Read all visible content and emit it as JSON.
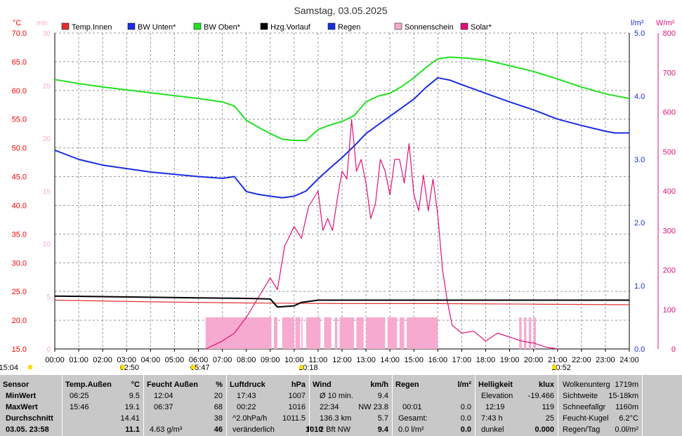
{
  "title": "Samstag, 03.05.2025",
  "colors": {
    "temp_innen": "#e03030",
    "bw_unten": "#1a2ee0",
    "bw_oben": "#22e022",
    "hzg_vorlauf": "#000000",
    "regen": "#1a2ee0",
    "sonnenschein": "#f7aad0",
    "solar": "#e0107a",
    "axis_c": "#ff0000",
    "axis_min": "#f7aad0",
    "axis_rain": "#1a2ee0",
    "axis_solar": "#e0107a"
  },
  "legend": [
    {
      "label": "Temp.Innen",
      "color": "#e03030"
    },
    {
      "label": "BW Unten*",
      "color": "#1a2ee0"
    },
    {
      "label": "BW Oben*",
      "color": "#22e022"
    },
    {
      "label": "Hzg.Vorlauf",
      "color": "#000000"
    },
    {
      "label": "Regen",
      "color": "#1a2ee0"
    },
    {
      "label": "Sonnenschein",
      "color": "#f7aad0"
    },
    {
      "label": "Solar*",
      "color": "#e0107a"
    }
  ],
  "axes": {
    "left_unit": "°C",
    "min_unit": "min",
    "rain_unit": "l/m²",
    "solar_unit": "W/m²",
    "left_ticks": [
      "70.0",
      "65.0",
      "60.0",
      "55.0",
      "50.0",
      "45.0",
      "40.0",
      "35.0",
      "30.0",
      "25.0",
      "20.0",
      "15.0"
    ],
    "min_ticks": [
      "30",
      "25",
      "20",
      "15",
      "10",
      "5",
      "0"
    ],
    "rain_ticks": [
      "5.0",
      "4.0",
      "3.0",
      "2.0",
      "1.0",
      "0.0"
    ],
    "solar_ticks": [
      "800",
      "700",
      "600",
      "500",
      "400",
      "300",
      "200",
      "100",
      "0"
    ],
    "x_ticks": [
      "00:00",
      "01:00",
      "02:00",
      "03:00",
      "04:00",
      "05:00",
      "06:00",
      "07:00",
      "08:00",
      "09:00",
      "10:00",
      "11:00",
      "12:00",
      "13:00",
      "14:00",
      "15:00",
      "16:00",
      "17:00",
      "18:00",
      "19:00",
      "20:00",
      "21:00",
      "22:00",
      "23:00",
      "24:00"
    ],
    "markers": [
      {
        "time": "15:04",
        "hour": -2.2
      },
      {
        "time": "02:50",
        "hour": 2.83
      },
      {
        "time": "05:47",
        "hour": 5.78
      },
      {
        "time": "10:18",
        "hour": 10.3
      },
      {
        "time": "20:52",
        "hour": 20.87
      }
    ]
  },
  "chart_data": {
    "type": "line",
    "title": "Samstag, 03.05.2025",
    "x_range": [
      0,
      24
    ],
    "left_ylim": [
      15,
      70
    ],
    "rain_ylim": [
      0,
      5
    ],
    "solar_ylim": [
      0,
      800
    ],
    "sunshine_ylim": [
      0,
      30
    ],
    "series": [
      {
        "name": "BW Oben*",
        "axis": "left",
        "x": [
          0,
          1,
          2,
          3,
          4,
          5,
          6,
          7,
          7.5,
          8,
          8.5,
          9,
          9.5,
          10,
          10.5,
          11,
          11.5,
          12,
          12.5,
          13,
          13.5,
          14,
          14.5,
          15,
          15.5,
          16,
          16.5,
          17,
          18,
          19,
          20,
          21,
          22,
          23,
          24
        ],
        "y": [
          61.9,
          61.2,
          60.6,
          60.1,
          59.6,
          59.1,
          58.6,
          58.0,
          57.3,
          54.8,
          53.6,
          52.5,
          51.5,
          51.3,
          51.3,
          53.2,
          54.0,
          54.6,
          55.6,
          58.0,
          59.0,
          59.5,
          60.7,
          62.2,
          64.0,
          65.5,
          65.8,
          65.7,
          65.3,
          64.3,
          63.3,
          62.0,
          60.6,
          59.4,
          58.6
        ]
      },
      {
        "name": "BW Unten*",
        "axis": "left",
        "x": [
          0,
          1,
          2,
          3,
          4,
          5,
          6,
          7,
          7.5,
          8,
          8.5,
          9,
          9.5,
          10,
          10.5,
          11,
          11.5,
          12,
          12.5,
          13,
          13.5,
          14,
          14.5,
          15,
          15.5,
          16,
          16.5,
          17,
          18,
          19,
          20,
          21,
          22,
          23,
          23.4,
          24
        ],
        "y": [
          49.6,
          48.0,
          47.0,
          46.4,
          45.8,
          45.4,
          45.0,
          44.7,
          45.0,
          42.4,
          41.9,
          41.6,
          41.3,
          41.6,
          42.5,
          44.6,
          46.5,
          48.3,
          50.3,
          52.5,
          54.0,
          55.5,
          57.0,
          58.5,
          60.5,
          62.2,
          61.8,
          61.0,
          59.5,
          58.0,
          56.6,
          55.0,
          53.9,
          52.9,
          52.6,
          52.6
        ]
      },
      {
        "name": "Hzg.Vorlauf",
        "axis": "left",
        "x": [
          0,
          2,
          4,
          6,
          8,
          9.0,
          9.3,
          10,
          10.3,
          11,
          12,
          14,
          16,
          18,
          20,
          22,
          24
        ],
        "y": [
          24.2,
          24.1,
          24.0,
          23.9,
          23.8,
          23.7,
          22.3,
          22.5,
          23.1,
          23.5,
          23.5,
          23.5,
          23.5,
          23.5,
          23.5,
          23.5,
          23.5
        ]
      },
      {
        "name": "Temp.Innen",
        "axis": "left",
        "x": [
          0,
          4,
          8,
          12,
          16,
          20,
          24
        ],
        "y": [
          23.5,
          23.2,
          23.0,
          22.9,
          22.9,
          22.8,
          22.7
        ]
      },
      {
        "name": "Solar*",
        "axis": "solar",
        "x": [
          6.3,
          7,
          7.5,
          8,
          8.5,
          9,
          9.3,
          9.6,
          10,
          10.3,
          10.6,
          11,
          11.2,
          11.4,
          11.6,
          11.8,
          12,
          12.2,
          12.4,
          12.5,
          12.6,
          12.8,
          13,
          13.2,
          13.4,
          13.6,
          13.8,
          14,
          14.2,
          14.4,
          14.6,
          14.8,
          15,
          15.2,
          15.4,
          15.6,
          15.8,
          16,
          16.2,
          16.4,
          16.6,
          17,
          17.5,
          18,
          18.5,
          19,
          19.5,
          20,
          20.5,
          21
        ],
        "y": [
          0,
          20,
          40,
          80,
          130,
          180,
          150,
          260,
          310,
          280,
          360,
          400,
          300,
          330,
          300,
          380,
          450,
          430,
          580,
          520,
          450,
          480,
          420,
          330,
          370,
          480,
          450,
          390,
          480,
          480,
          420,
          520,
          390,
          350,
          440,
          350,
          430,
          340,
          200,
          120,
          60,
          40,
          45,
          20,
          40,
          30,
          20,
          15,
          5,
          0
        ]
      },
      {
        "name": "Sonnenschein",
        "axis": "min",
        "type": "bar",
        "intervals": [
          [
            6.3,
            9.05
          ],
          [
            9.15,
            9.3
          ],
          [
            9.5,
            10.0
          ],
          [
            10.05,
            10.25
          ],
          [
            10.3,
            10.35
          ],
          [
            10.5,
            11.1
          ],
          [
            11.25,
            11.55
          ],
          [
            11.7,
            11.8
          ],
          [
            11.9,
            12.5
          ],
          [
            12.6,
            12.9
          ],
          [
            13.0,
            13.8
          ],
          [
            13.9,
            14.3
          ],
          [
            14.4,
            14.6
          ],
          [
            14.7,
            16.0
          ],
          [
            19.4,
            19.5
          ],
          [
            19.6,
            19.7
          ],
          [
            19.8,
            19.9
          ],
          [
            20.0,
            20.1
          ]
        ],
        "value": 3.0
      }
    ]
  },
  "stats": {
    "sensor": {
      "hdr": "Sensor",
      "rows": [
        "MinWert",
        "MaxWert",
        "Durchschnitt",
        "03.05. 23:58"
      ]
    },
    "temp": {
      "hdr": "Temp.Außen",
      "unit": "°C",
      "rows": [
        [
          "06:25",
          "9.5"
        ],
        [
          "15:46",
          "19.1"
        ],
        [
          "",
          "14.41"
        ],
        [
          "",
          "11.1"
        ]
      ]
    },
    "feucht": {
      "hdr": "Feucht Außen",
      "unit": "%",
      "rows": [
        [
          "12:04",
          "20"
        ],
        [
          "06:37",
          "68"
        ],
        [
          "",
          "38"
        ],
        [
          "4.63 g/m³",
          "46"
        ]
      ]
    },
    "luft": {
      "hdr": "Luftdruck",
      "unit": "hPa",
      "rows": [
        [
          "17:43",
          "1007"
        ],
        [
          "00:22",
          "1016"
        ],
        [
          "^2.0hPa/h",
          "1011.5"
        ],
        [
          "veränderlich",
          "1010"
        ]
      ]
    },
    "wind": {
      "hdr": "Wind",
      "unit": "km/h",
      "rows": [
        [
          "Ø 10 min.",
          "9.4"
        ],
        [
          "22:34",
          "NW 23.8"
        ],
        [
          "136.3 km",
          "5.7"
        ],
        [
          "2 Bft NW",
          "9.4"
        ]
      ]
    },
    "regen": {
      "hdr": "Regen",
      "unit": "l/m²",
      "rows": [
        [
          "",
          ""
        ],
        [
          "00:01",
          "0.0"
        ],
        [
          "Gesamt:",
          "0.0"
        ],
        [
          "0.0 l/m²",
          "0.0"
        ]
      ]
    },
    "hell": {
      "hdr": "Helligkeit",
      "unit": "klux",
      "rows": [
        [
          "Elevation",
          "-19.466"
        ],
        [
          "12:19",
          "119"
        ],
        [
          "7:43 h",
          "25"
        ],
        [
          "dunkel",
          "0.000"
        ]
      ]
    },
    "extra": {
      "rows": [
        [
          "Wolkenunterg",
          "1719m"
        ],
        [
          "Sichtweite",
          "15-18km"
        ],
        [
          "Schneefallgr",
          "1160m"
        ],
        [
          "Feucht-Kugel",
          "6.2°C"
        ],
        [
          "Regen/Tag",
          "0.0l/m²"
        ]
      ]
    }
  }
}
